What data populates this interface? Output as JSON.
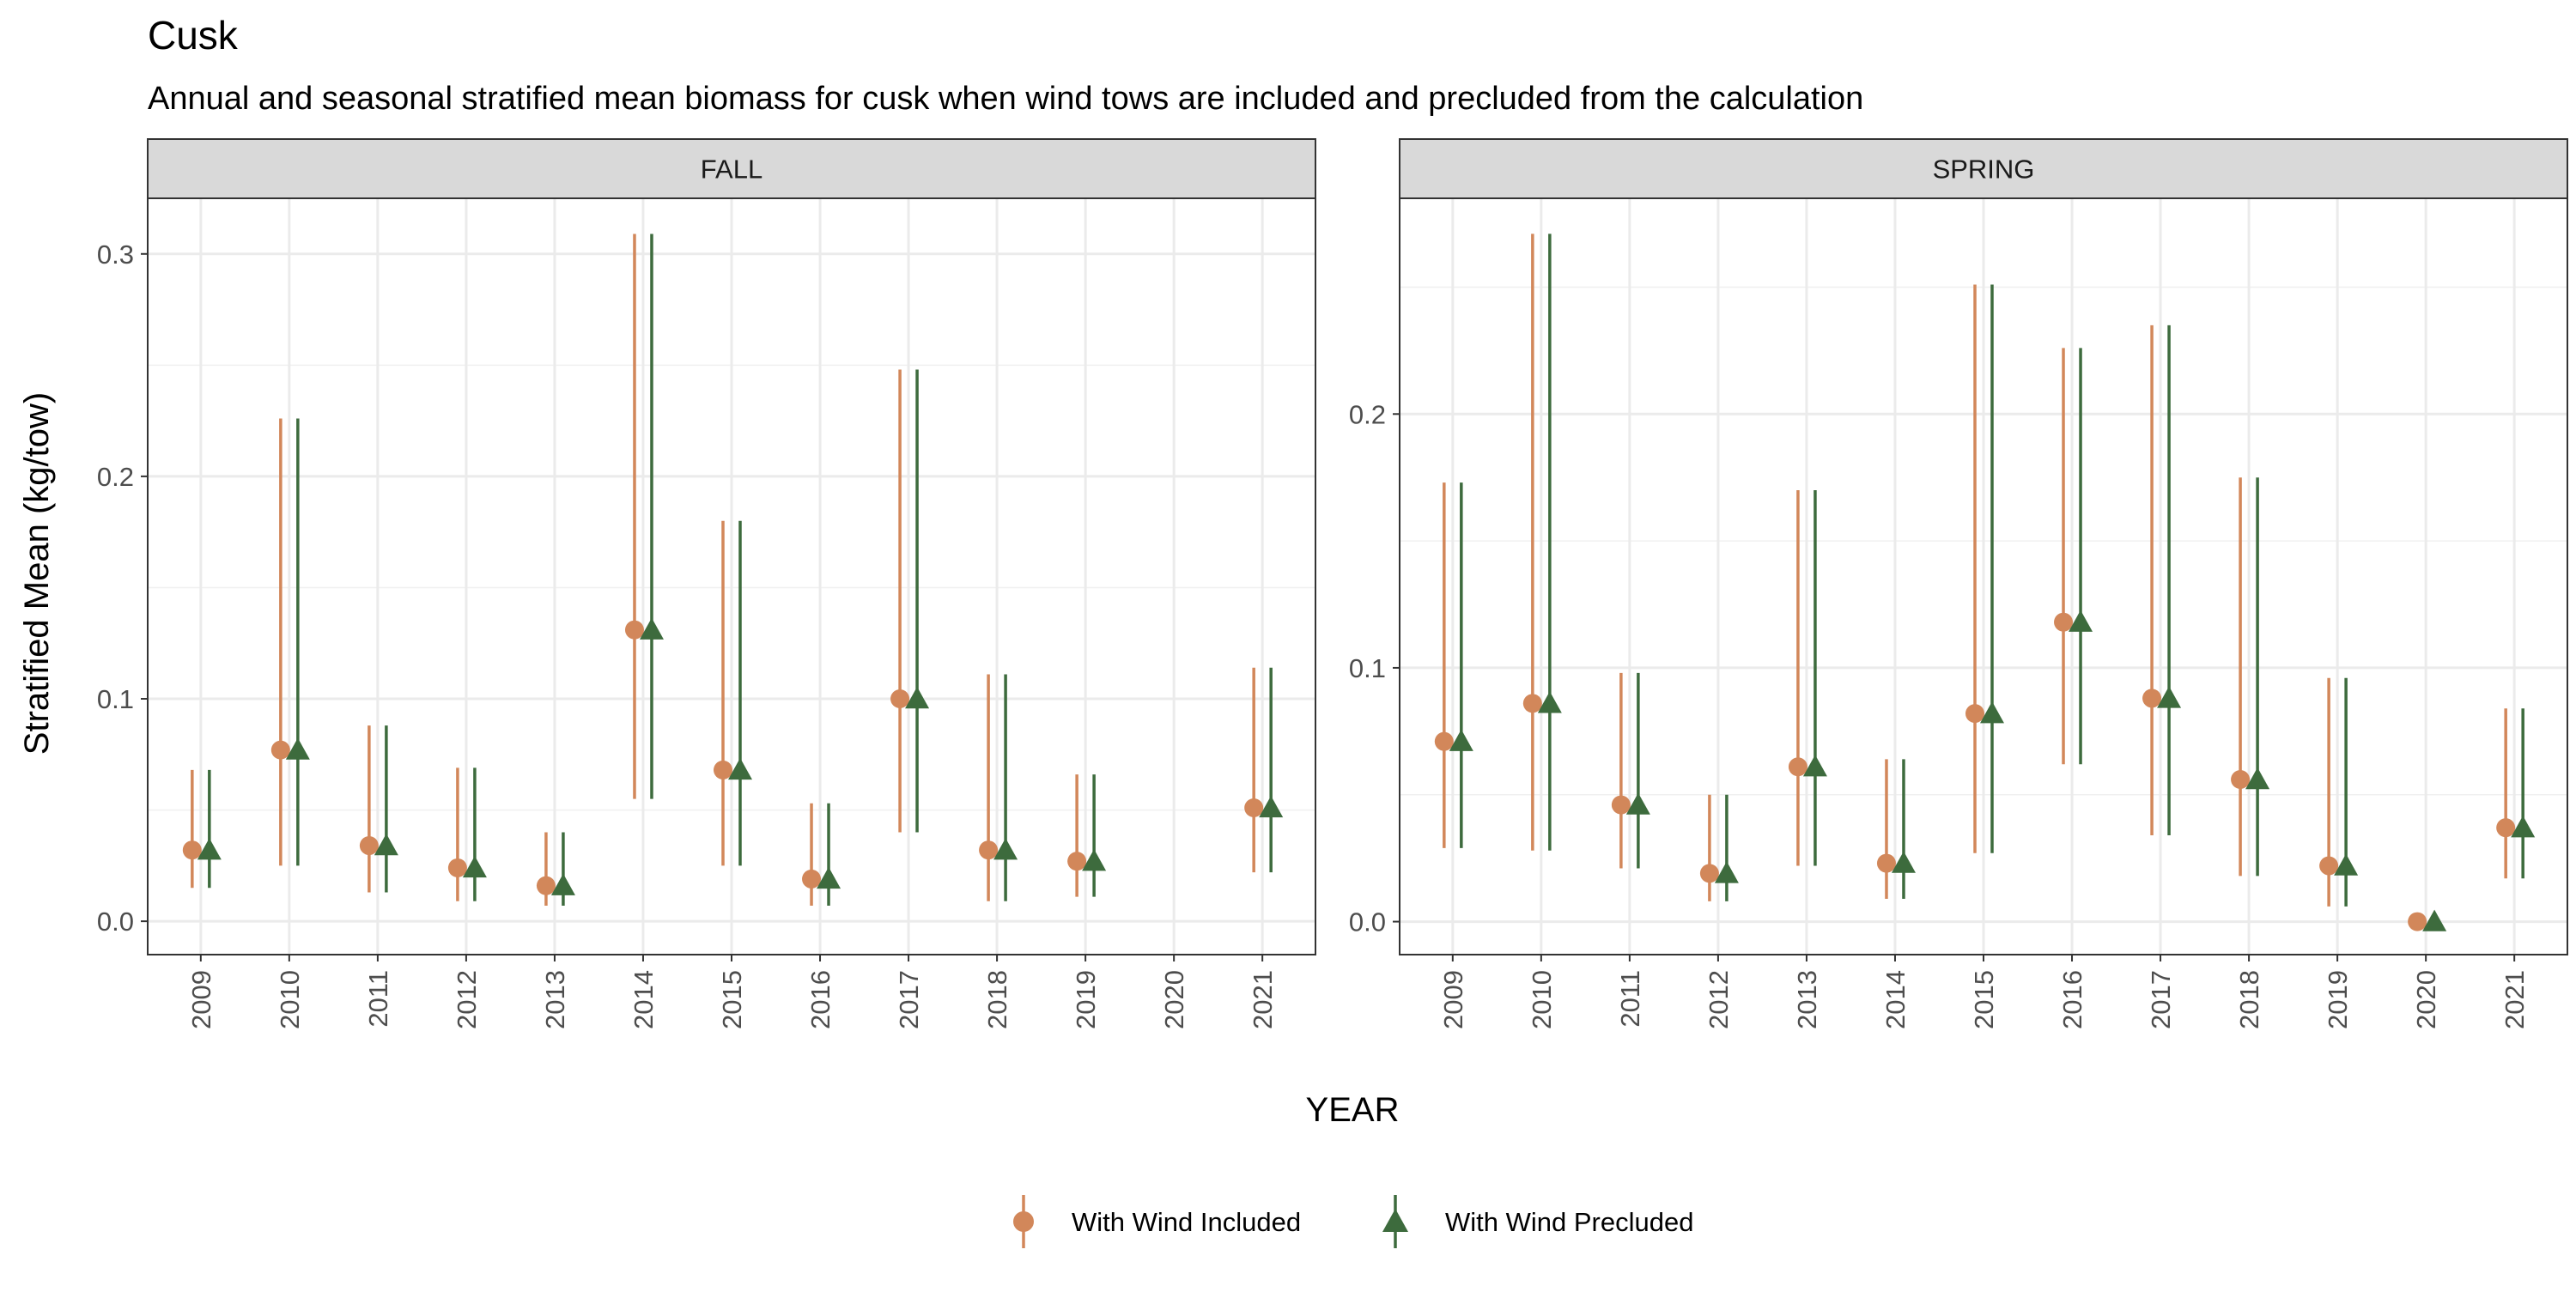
{
  "chart_data": {
    "type": "scatter",
    "title": "Cusk",
    "subtitle": "Annual and seasonal stratified mean biomass for cusk when wind tows are included and precluded from the calculation",
    "xlabel": "YEAR",
    "ylabel": "Stratified Mean (kg/tow)",
    "grid": true,
    "legend_position": "bottom",
    "categories": [
      "2009",
      "2010",
      "2011",
      "2012",
      "2013",
      "2014",
      "2015",
      "2016",
      "2017",
      "2018",
      "2019",
      "2020",
      "2021"
    ],
    "series": [
      {
        "name": "With Wind Included",
        "color": "#D2875A",
        "marker": "circle"
      },
      {
        "name": "With Wind Precluded",
        "color": "#3D6B3D",
        "marker": "triangle"
      }
    ],
    "panels": [
      {
        "label": "FALL",
        "ylim": [
          -0.015,
          0.325
        ],
        "yticks": [
          0.0,
          0.1,
          0.2,
          0.3
        ],
        "ytick_labels": [
          "0.0",
          "0.1",
          "0.2",
          "0.3"
        ],
        "points": [
          {
            "x": "2009",
            "y": 0.032,
            "low": 0.015,
            "high": 0.068
          },
          {
            "x": "2010",
            "y": 0.077,
            "low": 0.025,
            "high": 0.226
          },
          {
            "x": "2011",
            "y": 0.034,
            "low": 0.013,
            "high": 0.088
          },
          {
            "x": "2012",
            "y": 0.024,
            "low": 0.009,
            "high": 0.069
          },
          {
            "x": "2013",
            "y": 0.016,
            "low": 0.007,
            "high": 0.04
          },
          {
            "x": "2014",
            "y": 0.131,
            "low": 0.055,
            "high": 0.309
          },
          {
            "x": "2015",
            "y": 0.068,
            "low": 0.025,
            "high": 0.18
          },
          {
            "x": "2016",
            "y": 0.019,
            "low": 0.007,
            "high": 0.053
          },
          {
            "x": "2017",
            "y": 0.1,
            "low": 0.04,
            "high": 0.248
          },
          {
            "x": "2018",
            "y": 0.032,
            "low": 0.009,
            "high": 0.111
          },
          {
            "x": "2019",
            "y": 0.027,
            "low": 0.011,
            "high": 0.066
          },
          {
            "x": "2021",
            "y": 0.051,
            "low": 0.022,
            "high": 0.114
          }
        ]
      },
      {
        "label": "SPRING",
        "ylim": [
          -0.013,
          0.285
        ],
        "yticks": [
          0.0,
          0.1,
          0.2
        ],
        "ytick_labels": [
          "0.0",
          "0.1",
          "0.2"
        ],
        "points": [
          {
            "x": "2009",
            "y": 0.071,
            "low": 0.029,
            "high": 0.173
          },
          {
            "x": "2010",
            "y": 0.086,
            "low": 0.028,
            "high": 0.271
          },
          {
            "x": "2011",
            "y": 0.046,
            "low": 0.021,
            "high": 0.098
          },
          {
            "x": "2012",
            "y": 0.019,
            "low": 0.008,
            "high": 0.05
          },
          {
            "x": "2013",
            "y": 0.061,
            "low": 0.022,
            "high": 0.17
          },
          {
            "x": "2014",
            "y": 0.023,
            "low": 0.009,
            "high": 0.064
          },
          {
            "x": "2015",
            "y": 0.082,
            "low": 0.027,
            "high": 0.251
          },
          {
            "x": "2016",
            "y": 0.118,
            "low": 0.062,
            "high": 0.226
          },
          {
            "x": "2017",
            "y": 0.088,
            "low": 0.034,
            "high": 0.235
          },
          {
            "x": "2018",
            "y": 0.056,
            "low": 0.018,
            "high": 0.175
          },
          {
            "x": "2019",
            "y": 0.022,
            "low": 0.006,
            "high": 0.096
          },
          {
            "x": "2020",
            "y": 0.0,
            "low": 0.0,
            "high": 0.0
          },
          {
            "x": "2021",
            "y": 0.037,
            "low": 0.017,
            "high": 0.084
          }
        ]
      }
    ]
  }
}
